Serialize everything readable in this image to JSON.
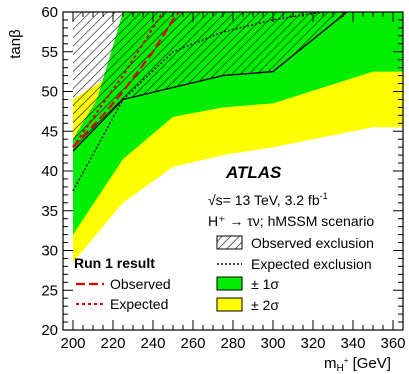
{
  "chart_data": {
    "type": "area",
    "xlabel_main": "m",
    "xlabel_sub": "H",
    "xlabel_sup": "+",
    "xlabel_unit": " [GeV]",
    "ylabel": "tanβ",
    "xlim": [
      195,
      365
    ],
    "ylim": [
      20,
      60
    ],
    "xticks": [
      200,
      220,
      240,
      260,
      280,
      300,
      320,
      340,
      360
    ],
    "yticks": [
      20,
      25,
      30,
      35,
      40,
      45,
      50,
      55,
      60
    ],
    "experiment": "ATLAS",
    "energy_text": "√s= 13 TeV, 3.2 fb",
    "energy_sup": "-1",
    "process_text": "H⁺ → τν; hMSSM scenario",
    "legend": {
      "observed_exclusion": "Observed exclusion",
      "expected_exclusion": "Expected exclusion",
      "one_sigma": "± 1σ",
      "two_sigma": "± 2σ"
    },
    "run1_legend": {
      "title": "Run 1 result",
      "observed": "Observed",
      "expected": "Expected"
    },
    "colors": {
      "one_sigma": "#00ee00",
      "two_sigma": "#ffff00",
      "run1": "#dd0000"
    },
    "series": {
      "two_sigma_lower": [
        [
          200,
          28.5
        ],
        [
          225,
          36
        ],
        [
          250,
          40.5
        ],
        [
          275,
          42
        ],
        [
          300,
          43
        ],
        [
          350,
          45.5
        ],
        [
          365,
          45.5
        ]
      ],
      "two_sigma_upper": [
        [
          200,
          49
        ],
        [
          225,
          53
        ],
        [
          250,
          60
        ],
        [
          365,
          60
        ]
      ],
      "one_sigma_lower": [
        [
          200,
          32
        ],
        [
          225,
          41.5
        ],
        [
          250,
          46.8
        ],
        [
          275,
          48
        ],
        [
          300,
          48.5
        ],
        [
          350,
          52.5
        ],
        [
          365,
          52.5
        ]
      ],
      "one_sigma_upper": [
        [
          200,
          44
        ],
        [
          212,
          49
        ],
        [
          225,
          60
        ],
        [
          365,
          60
        ]
      ],
      "expected": [
        [
          200,
          37.5
        ],
        [
          225,
          49
        ],
        [
          250,
          55
        ],
        [
          275,
          57.5
        ],
        [
          300,
          59
        ],
        [
          325,
          60
        ]
      ],
      "observed": [
        [
          200,
          42.5
        ],
        [
          225,
          49
        ],
        [
          250,
          50.5
        ],
        [
          275,
          52
        ],
        [
          300,
          52.5
        ],
        [
          337,
          60
        ]
      ],
      "run1_observed": [
        [
          200,
          43
        ],
        [
          215,
          47
        ],
        [
          225,
          50
        ],
        [
          240,
          55
        ],
        [
          250,
          59
        ],
        [
          253,
          60
        ]
      ],
      "run1_expected": [
        [
          200,
          43
        ],
        [
          215,
          48.5
        ],
        [
          225,
          52
        ],
        [
          240,
          58
        ],
        [
          245,
          60
        ]
      ]
    }
  }
}
